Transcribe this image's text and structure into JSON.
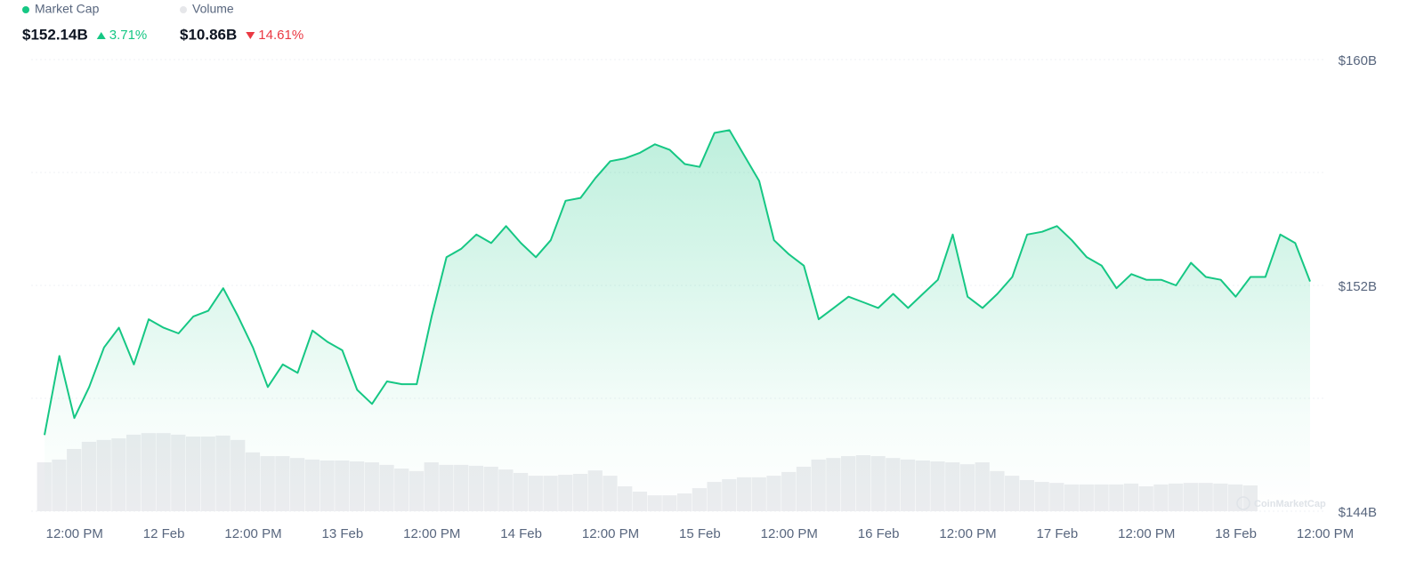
{
  "chart_data": {
    "type": "line",
    "categories": [
      null,
      "12:00 PM",
      null,
      null,
      null,
      null,
      null,
      "12 Feb",
      null,
      null,
      null,
      null,
      null,
      "12:00 PM",
      null,
      null,
      null,
      null,
      null,
      "13 Feb",
      null,
      null,
      null,
      null,
      null,
      "12:00 PM",
      null,
      null,
      null,
      null,
      null,
      "14 Feb",
      null,
      null,
      null,
      null,
      null,
      "12:00 PM",
      null,
      null,
      null,
      null,
      null,
      "15 Feb",
      null,
      null,
      null,
      null,
      null,
      "12:00 PM",
      null,
      null,
      null,
      null,
      null,
      "16 Feb",
      null,
      null,
      null,
      null,
      null,
      "12:00 PM",
      null,
      null,
      null,
      null,
      null,
      "17 Feb",
      null,
      null,
      null,
      null,
      null,
      "12:00 PM",
      null,
      null,
      null,
      null,
      null,
      "18 Feb",
      null,
      null,
      null,
      null,
      null,
      "12:00 PM"
    ],
    "series": [
      {
        "name": "Market Cap",
        "color": "#16c784",
        "values": [
          146.7,
          149.5,
          147.3,
          148.4,
          149.8,
          150.5,
          149.2,
          150.8,
          150.5,
          150.3,
          150.9,
          151.1,
          151.9,
          150.9,
          149.8,
          148.4,
          149.2,
          148.9,
          150.4,
          150.0,
          149.7,
          148.3,
          147.8,
          148.6,
          148.5,
          148.5,
          150.9,
          153.0,
          153.3,
          153.8,
          153.5,
          154.1,
          153.5,
          153.0,
          153.6,
          155.0,
          155.1,
          155.8,
          156.4,
          156.5,
          156.7,
          157.0,
          156.8,
          156.3,
          156.2,
          157.4,
          157.5,
          156.6,
          155.7,
          153.6,
          153.1,
          152.7,
          150.8,
          151.2,
          151.6,
          151.4,
          151.2,
          151.7,
          151.2,
          151.7,
          152.2,
          153.8,
          151.6,
          151.2,
          151.7,
          152.3,
          153.8,
          153.9,
          154.1,
          153.6,
          153.0,
          152.7,
          151.9,
          152.4,
          152.2,
          152.2,
          152.0,
          152.8,
          152.3,
          152.2,
          151.6,
          152.3,
          152.3,
          153.8,
          153.5,
          152.14
        ]
      },
      {
        "name": "Volume",
        "color": "#ebecef",
        "axis": "y2",
        "values": [
          15.7,
          16.6,
          20.0,
          22.3,
          22.9,
          23.4,
          24.6,
          25.1,
          25.1,
          24.6,
          24.0,
          24.0,
          24.3,
          22.9,
          18.9,
          17.7,
          17.7,
          17.1,
          16.6,
          16.3,
          16.3,
          16.0,
          15.7,
          14.9,
          13.7,
          12.9,
          15.7,
          14.9,
          14.9,
          14.6,
          14.3,
          13.4,
          12.3,
          11.4,
          11.4,
          11.7,
          12.0,
          13.1,
          11.4,
          8.0,
          6.3,
          5.1,
          5.1,
          5.7,
          7.4,
          9.4,
          10.3,
          10.9,
          10.9,
          11.4,
          12.6,
          14.3,
          16.6,
          17.1,
          17.7,
          18.0,
          17.7,
          17.1,
          16.6,
          16.3,
          16.0,
          15.7,
          15.1,
          15.7,
          12.9,
          11.4,
          10.0,
          9.4,
          9.1,
          8.6,
          8.6,
          8.6,
          8.6,
          8.9,
          8.0,
          8.6,
          8.9,
          9.1,
          9.1,
          8.9,
          8.6,
          8.3,
          null,
          null,
          null,
          null
        ]
      }
    ],
    "summary": [
      {
        "value": "$152.14B",
        "change": "3.71%",
        "direction": "up"
      },
      {
        "value": "$10.86B",
        "change": "14.61%",
        "direction": "down"
      }
    ],
    "ylim": [
      144,
      160
    ],
    "yticks": [
      {
        "value": 144,
        "label": "$144B"
      },
      {
        "value": 152,
        "label": "$152B"
      },
      {
        "value": 160,
        "label": "$160B"
      }
    ],
    "y_minor_ticks": [
      148,
      156
    ],
    "y2lim": [
      0,
      40
    ],
    "grid": true,
    "watermark": "CoinMarketCap"
  }
}
